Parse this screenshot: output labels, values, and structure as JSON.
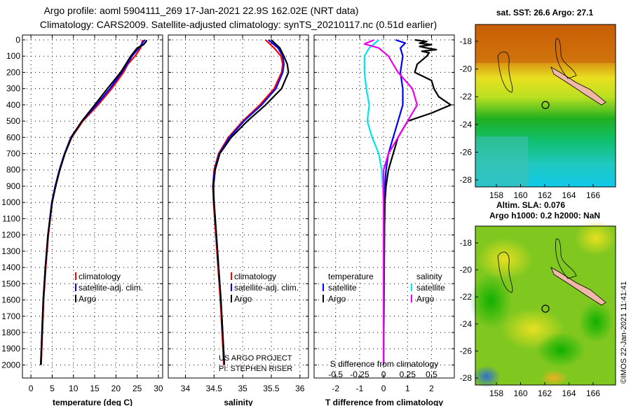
{
  "header": {
    "line1": "Argo profile: aoml 5904111_269 17-Jan-2021 22.9S 162.02E (NRT data)",
    "line2": "Climatology: CARS2009. Satellite-adjusted climatology: synTS_20210117.nc (0.51d earlier)"
  },
  "colors": {
    "climatology": "#ff0000",
    "satellite": "#0000ff",
    "argo": "#000000",
    "sat_s": "#00e5ee",
    "argo_s": "#ee00ee"
  },
  "depth_axis": {
    "ticks": [
      0,
      100,
      200,
      300,
      400,
      500,
      600,
      700,
      800,
      900,
      1000,
      1100,
      1200,
      1300,
      1400,
      1500,
      1600,
      1700,
      1800,
      1900,
      2000
    ]
  },
  "chart_data": [
    {
      "type": "line",
      "name": "temperature",
      "xlabel": "temperature (deg C)",
      "xlim": [
        -2,
        31
      ],
      "ylim": [
        2080,
        -30
      ],
      "xticks": [
        0,
        5,
        10,
        15,
        20,
        25,
        30
      ],
      "legend": [
        "climatology",
        "satellite-adj. clim.",
        "Argo"
      ],
      "series": [
        {
          "name": "climatology",
          "depth": [
            0,
            50,
            100,
            150,
            200,
            300,
            400,
            500,
            600,
            700,
            800,
            900,
            1000,
            1200,
            1400,
            1600,
            1800,
            2000
          ],
          "values": [
            26.3,
            25.8,
            24.5,
            22.8,
            21.8,
            19.0,
            15.8,
            12.2,
            9.6,
            8.0,
            6.8,
            5.8,
            5.0,
            4.1,
            3.5,
            3.0,
            2.7,
            2.4
          ]
        },
        {
          "name": "satellite-adj. clim.",
          "depth": [
            0,
            50,
            100,
            150,
            200,
            300,
            400,
            500,
            600,
            700,
            800,
            900,
            1000,
            1200,
            1400,
            1600,
            1800,
            2000
          ],
          "values": [
            26.8,
            25.4,
            23.8,
            22.6,
            21.4,
            18.6,
            15.4,
            12.0,
            9.4,
            7.9,
            6.7,
            5.7,
            4.9,
            4.0,
            3.4,
            2.9,
            2.6,
            2.3
          ]
        },
        {
          "name": "Argo",
          "depth": [
            0,
            10,
            30,
            50,
            100,
            150,
            200,
            300,
            400,
            500,
            600,
            700,
            800,
            900,
            1000,
            1200,
            1400,
            1600,
            1800,
            2000
          ],
          "values": [
            27.2,
            27.1,
            26.5,
            25.0,
            23.5,
            22.3,
            21.1,
            18.0,
            15.0,
            12.0,
            9.5,
            8.0,
            6.8,
            5.8,
            5.0,
            4.0,
            3.4,
            2.9,
            2.6,
            2.3
          ]
        }
      ]
    },
    {
      "type": "line",
      "name": "salinity",
      "xlabel": "salinity",
      "xlim": [
        33.7,
        36.15
      ],
      "ylim": [
        2080,
        -30
      ],
      "xticks": [
        34,
        34.5,
        35,
        35.5,
        36
      ],
      "legend": [
        "climatology",
        "satellite-adj. clim.",
        "Argo"
      ],
      "credit": [
        "US ARGO PROJECT",
        "PI: STEPHEN RISER"
      ],
      "series": [
        {
          "name": "climatology",
          "depth": [
            0,
            50,
            100,
            150,
            200,
            300,
            400,
            500,
            600,
            700,
            800,
            900,
            1000,
            1200,
            1400,
            1600,
            1800,
            2000
          ],
          "values": [
            35.4,
            35.55,
            35.67,
            35.7,
            35.68,
            35.55,
            35.3,
            35.0,
            34.75,
            34.58,
            34.5,
            34.48,
            34.49,
            34.53,
            34.57,
            34.61,
            34.64,
            34.67
          ]
        },
        {
          "name": "satellite-adj. clim.",
          "depth": [
            0,
            50,
            100,
            150,
            200,
            300,
            400,
            500,
            600,
            700,
            800,
            900,
            1000,
            1200,
            1400,
            1600,
            1800,
            2000
          ],
          "values": [
            35.45,
            35.62,
            35.7,
            35.72,
            35.7,
            35.58,
            35.33,
            35.02,
            34.77,
            34.59,
            34.51,
            34.48,
            34.5,
            34.54,
            34.58,
            34.62,
            34.65,
            34.68
          ]
        },
        {
          "name": "Argo",
          "depth": [
            0,
            50,
            100,
            150,
            200,
            300,
            400,
            500,
            600,
            700,
            800,
            900,
            1000,
            1200,
            1400,
            1600,
            1800,
            2000
          ],
          "values": [
            35.5,
            35.65,
            35.72,
            35.78,
            35.8,
            35.68,
            35.4,
            35.08,
            34.8,
            34.6,
            34.52,
            34.49,
            34.5,
            34.54,
            34.58,
            34.62,
            34.65,
            34.68
          ]
        }
      ]
    },
    {
      "type": "line",
      "name": "difference",
      "xlabel": "T difference from climatology",
      "xlabel_top": "S difference from climatology",
      "xlim": [
        -2.9,
        2.95
      ],
      "ylim": [
        2080,
        -30
      ],
      "xticks": [
        -2,
        -1,
        0,
        1,
        2
      ],
      "sticks_values": [
        -0.5,
        -0.25,
        0,
        0.25,
        0.5
      ],
      "sticks_labels": [
        "-0.5",
        "-0.25",
        "0",
        "0.25",
        "0.5"
      ],
      "legend": {
        "temperature_title": "temperature",
        "salinity_title": "salinity",
        "items": [
          "satellite",
          "Argo",
          "satellite",
          "Argo"
        ]
      },
      "series": [
        {
          "name": "T satellite",
          "depth": [
            0,
            20,
            50,
            100,
            200,
            300,
            400,
            500,
            600,
            700,
            800,
            900,
            1000,
            1200,
            1500,
            2000
          ],
          "values": [
            0.5,
            0.9,
            0.7,
            0.8,
            0.7,
            0.8,
            0.8,
            0.6,
            0.4,
            0.2,
            0.1,
            0.05,
            0.05,
            0.03,
            0.02,
            0.0
          ]
        },
        {
          "name": "T Argo",
          "depth": [
            0,
            10,
            20,
            30,
            40,
            50,
            60,
            70,
            80,
            100,
            150,
            200,
            250,
            300,
            350,
            400,
            450,
            500,
            600,
            700,
            800,
            900,
            1000,
            1200,
            1500,
            2000
          ],
          "values": [
            1.3,
            1.8,
            1.5,
            2.0,
            1.5,
            1.8,
            2.2,
            1.6,
            1.9,
            1.8,
            1.4,
            1.3,
            2.0,
            2.1,
            2.3,
            2.8,
            2.0,
            1.0,
            0.6,
            0.4,
            0.2,
            0.1,
            0.05,
            0.03,
            0.02,
            0.0
          ]
        },
        {
          "name": "S satellite",
          "scale": "S",
          "depth": [
            0,
            50,
            100,
            200,
            300,
            400,
            500,
            600,
            700,
            800,
            1000,
            1500,
            2000
          ],
          "values": [
            -0.05,
            -0.15,
            -0.2,
            -0.2,
            -0.18,
            -0.15,
            -0.17,
            -0.12,
            -0.05,
            -0.02,
            0.0,
            0.0,
            0.0
          ]
        },
        {
          "name": "S Argo",
          "scale": "S",
          "depth": [
            0,
            25,
            50,
            100,
            200,
            300,
            400,
            500,
            600,
            700,
            800,
            1000,
            1500,
            2000
          ],
          "values": [
            -0.1,
            -0.2,
            -0.05,
            0.05,
            0.15,
            0.3,
            0.35,
            0.25,
            0.15,
            0.05,
            0.0,
            0.0,
            0.0,
            0.0
          ]
        }
      ]
    }
  ],
  "maps": {
    "sst_title": "sat. SST: 26.6 Argo: 27.1",
    "sla_title1": "Altim. SLA: 0.076",
    "sla_title2": "Argo h1000: 0.2 h2000: NaN",
    "lat_ticks": [
      "-18",
      "-20",
      "-22",
      "-24",
      "-26",
      "-28"
    ],
    "lon_ticks": [
      "158",
      "160",
      "162",
      "164",
      "166"
    ],
    "stamp": "©IMOS 22-Jan-2021 11:41:41"
  }
}
